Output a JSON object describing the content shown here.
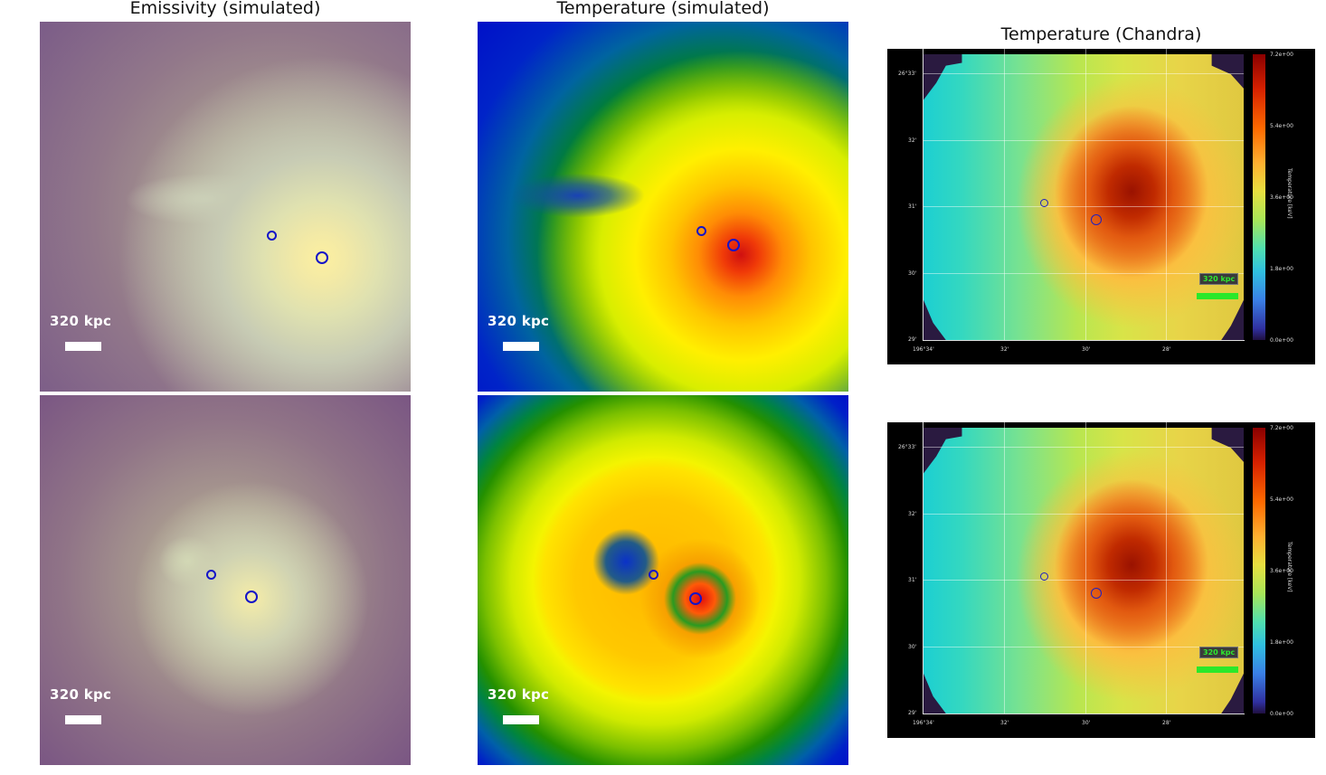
{
  "titles": {
    "emissivity": "Emissivity (simulated)",
    "temp_sim": "Temperature (simulated)",
    "temp_chandra": "Temperature (Chandra)"
  },
  "scale_label": "320 kpc",
  "chandra": {
    "y_ticks": [
      "26°33'",
      "32'",
      "31'",
      "30'",
      "29'"
    ],
    "x_ticks": [
      "196°34'",
      "32'",
      "30'",
      "28'"
    ],
    "colorbar_ticks": [
      "7.2e+00",
      "5.4e+00",
      "3.6e+00",
      "1.8e+00",
      "0.0e+00"
    ],
    "colorbar_title": "Temperature [keV]",
    "scale_label": "320 kpc"
  },
  "colors": {
    "marker": "#1414c8",
    "chandra_scale": "#2ae82a"
  }
}
